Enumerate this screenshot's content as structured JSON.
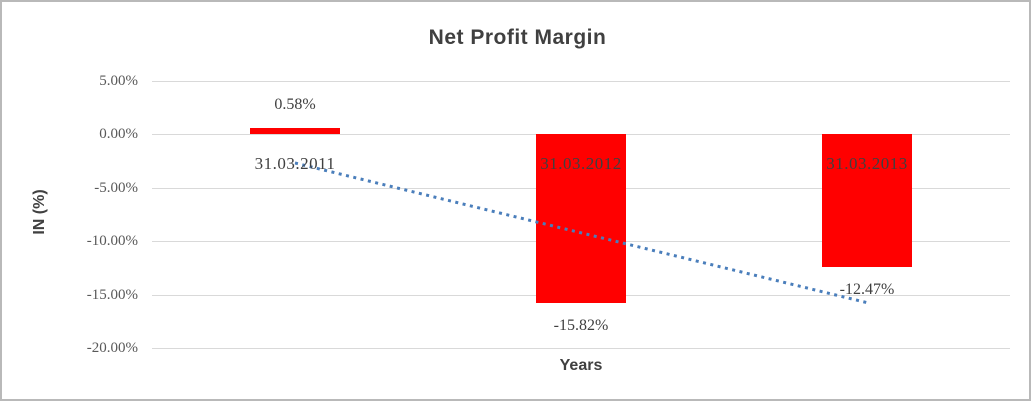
{
  "chart_data": {
    "type": "bar",
    "title": "Net Profit Margin",
    "categories": [
      "31.03.2011",
      "31.03.2012",
      "31.03.2013"
    ],
    "values": [
      0.58,
      -15.82,
      -12.47
    ],
    "value_labels": [
      "0.58%",
      "-15.82%",
      "-12.47%"
    ],
    "xlabel": "Years",
    "ylabel": "IN (%)",
    "ylim": [
      -20,
      5
    ],
    "ytick_step": 5,
    "yticks": [
      "5.00%",
      "0.00%",
      "-5.00%",
      "-10.00%",
      "-15.00%",
      "-20.00%"
    ],
    "grid": true,
    "legend": "none",
    "bar_color": "#ff0000",
    "trendline": {
      "type": "linear",
      "style": "dotted",
      "color": "#4a7ebb",
      "start_value": -2.71,
      "end_value": -15.76
    }
  },
  "colors": {
    "bar": "#ff0000",
    "trendline": "#4a7ebb",
    "gridline": "#d9d9d9",
    "title_text": "#404040",
    "tick_text": "#595959",
    "frame_border": "#b9b9b9"
  }
}
